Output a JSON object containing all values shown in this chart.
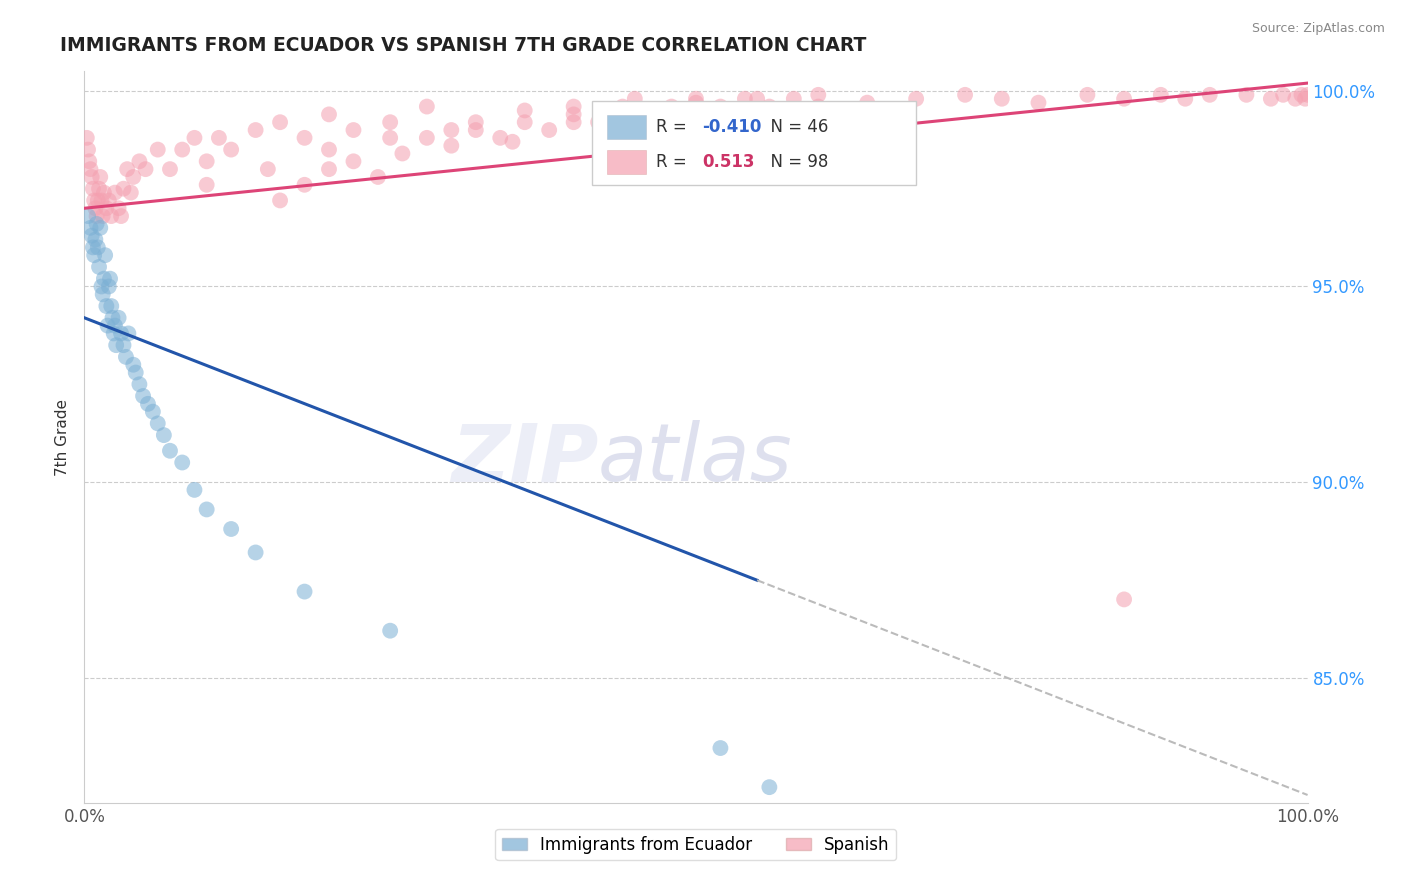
{
  "title": "IMMIGRANTS FROM ECUADOR VS SPANISH 7TH GRADE CORRELATION CHART",
  "source_text": "Source: ZipAtlas.com",
  "ylabel": "7th Grade",
  "xlim": [
    0.0,
    1.0
  ],
  "ylim": [
    0.818,
    1.005
  ],
  "right_yticks": [
    1.0,
    0.95,
    0.9,
    0.85
  ],
  "right_yticklabels": [
    "100.0%",
    "95.0%",
    "90.0%",
    "85.0%"
  ],
  "legend_r_blue": "-0.410",
  "legend_n_blue": "46",
  "legend_r_pink": "0.513",
  "legend_n_pink": "98",
  "blue_color": "#7BAFD4",
  "pink_color": "#F4A0B0",
  "blue_line_color": "#2255AA",
  "pink_line_color": "#DD4477",
  "dashed_line_color": "#BBBBBB",
  "blue_trend_x0": 0.0,
  "blue_trend_y0": 0.942,
  "blue_trend_x1": 1.0,
  "blue_trend_y1": 0.82,
  "blue_solid_cutoff": 0.55,
  "pink_trend_x0": 0.0,
  "pink_trend_y0": 0.97,
  "pink_trend_x1": 1.0,
  "pink_trend_y1": 1.002,
  "blue_scatter_x": [
    0.003,
    0.005,
    0.006,
    0.007,
    0.008,
    0.009,
    0.01,
    0.011,
    0.012,
    0.013,
    0.014,
    0.015,
    0.016,
    0.017,
    0.018,
    0.019,
    0.02,
    0.021,
    0.022,
    0.023,
    0.024,
    0.025,
    0.026,
    0.028,
    0.03,
    0.032,
    0.034,
    0.036,
    0.04,
    0.042,
    0.045,
    0.048,
    0.052,
    0.056,
    0.06,
    0.065,
    0.07,
    0.08,
    0.09,
    0.1,
    0.12,
    0.14,
    0.18,
    0.25,
    0.52,
    0.56
  ],
  "blue_scatter_y": [
    0.968,
    0.965,
    0.963,
    0.96,
    0.958,
    0.962,
    0.966,
    0.96,
    0.955,
    0.965,
    0.95,
    0.948,
    0.952,
    0.958,
    0.945,
    0.94,
    0.95,
    0.952,
    0.945,
    0.942,
    0.938,
    0.94,
    0.935,
    0.942,
    0.938,
    0.935,
    0.932,
    0.938,
    0.93,
    0.928,
    0.925,
    0.922,
    0.92,
    0.918,
    0.915,
    0.912,
    0.908,
    0.905,
    0.898,
    0.893,
    0.888,
    0.882,
    0.872,
    0.862,
    0.832,
    0.822
  ],
  "pink_scatter_x": [
    0.002,
    0.003,
    0.004,
    0.005,
    0.006,
    0.007,
    0.008,
    0.009,
    0.01,
    0.011,
    0.012,
    0.013,
    0.014,
    0.015,
    0.016,
    0.018,
    0.02,
    0.022,
    0.025,
    0.028,
    0.03,
    0.032,
    0.035,
    0.038,
    0.04,
    0.045,
    0.05,
    0.06,
    0.07,
    0.08,
    0.09,
    0.1,
    0.11,
    0.12,
    0.14,
    0.16,
    0.18,
    0.2,
    0.22,
    0.25,
    0.28,
    0.32,
    0.36,
    0.4,
    0.45,
    0.5,
    0.55,
    0.6,
    0.64,
    0.68,
    0.72,
    0.75,
    0.78,
    0.82,
    0.85,
    0.88,
    0.9,
    0.92,
    0.95,
    0.97,
    0.98,
    0.99,
    0.995,
    0.998,
    1.0,
    0.16,
    0.18,
    0.2,
    0.22,
    0.24,
    0.26,
    0.28,
    0.3,
    0.32,
    0.34,
    0.36,
    0.38,
    0.4,
    0.42,
    0.44,
    0.46,
    0.48,
    0.5,
    0.52,
    0.54,
    0.56,
    0.58,
    0.6,
    0.1,
    0.15,
    0.2,
    0.25,
    0.3,
    0.35,
    0.4,
    0.45,
    0.5,
    0.85
  ],
  "pink_scatter_y": [
    0.988,
    0.985,
    0.982,
    0.98,
    0.978,
    0.975,
    0.972,
    0.97,
    0.968,
    0.972,
    0.975,
    0.978,
    0.972,
    0.968,
    0.974,
    0.97,
    0.972,
    0.968,
    0.974,
    0.97,
    0.968,
    0.975,
    0.98,
    0.974,
    0.978,
    0.982,
    0.98,
    0.985,
    0.98,
    0.985,
    0.988,
    0.982,
    0.988,
    0.985,
    0.99,
    0.992,
    0.988,
    0.994,
    0.99,
    0.992,
    0.996,
    0.992,
    0.995,
    0.996,
    0.998,
    0.997,
    0.998,
    0.999,
    0.997,
    0.998,
    0.999,
    0.998,
    0.997,
    0.999,
    0.998,
    0.999,
    0.998,
    0.999,
    0.999,
    0.998,
    0.999,
    0.998,
    0.999,
    0.998,
    0.999,
    0.972,
    0.976,
    0.98,
    0.982,
    0.978,
    0.984,
    0.988,
    0.986,
    0.99,
    0.988,
    0.992,
    0.99,
    0.994,
    0.992,
    0.996,
    0.994,
    0.996,
    0.998,
    0.996,
    0.998,
    0.996,
    0.998,
    0.996,
    0.976,
    0.98,
    0.985,
    0.988,
    0.99,
    0.987,
    0.992,
    0.99,
    0.994,
    0.87
  ]
}
